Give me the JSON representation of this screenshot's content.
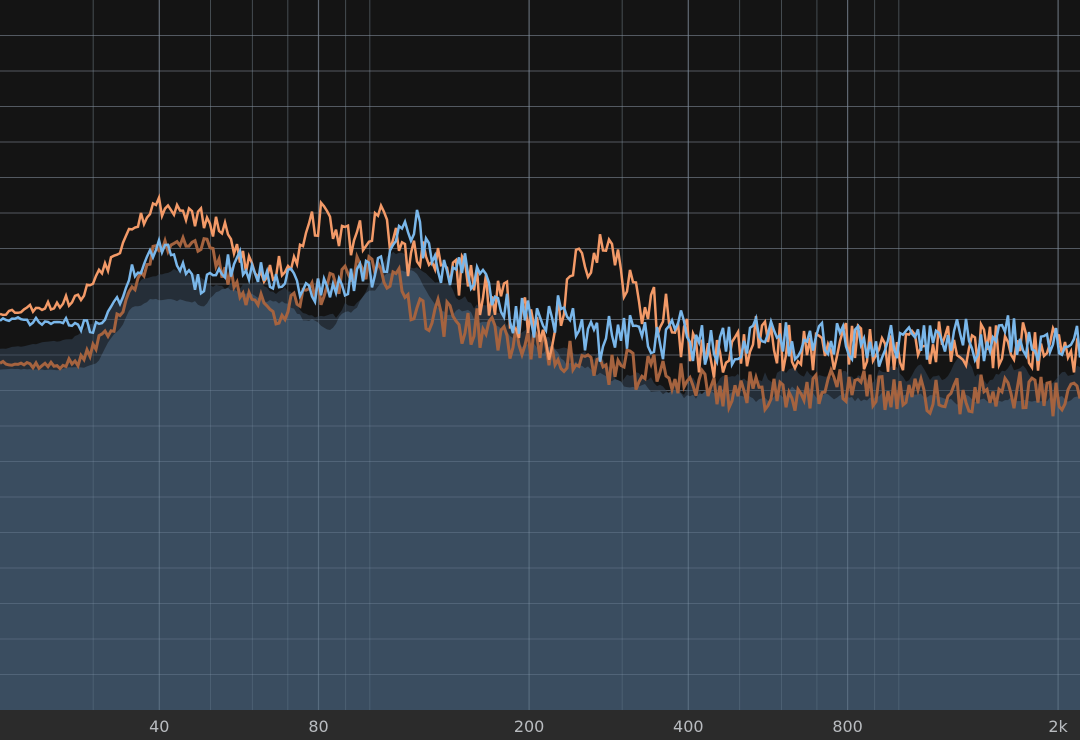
{
  "chart_data": {
    "type": "area",
    "x_scale": "log",
    "x_range": [
      20,
      2200
    ],
    "y_range": [
      -100,
      0
    ],
    "x_ticks": [
      {
        "value": 40,
        "label": "40"
      },
      {
        "value": 80,
        "label": "80"
      },
      {
        "value": 200,
        "label": "200"
      },
      {
        "value": 400,
        "label": "400"
      },
      {
        "value": 800,
        "label": "800"
      },
      {
        "value": 2000,
        "label": "2k"
      }
    ],
    "x_grid_major": [
      40,
      80,
      200,
      400,
      800,
      2000
    ],
    "x_grid_minor": [
      30,
      50,
      60,
      70,
      90,
      100,
      300,
      500,
      600,
      700,
      900,
      1000
    ],
    "y_grid": [
      -5,
      -10,
      -15,
      -20,
      -25,
      -30,
      -35,
      -40,
      -45,
      -50,
      -55,
      -60,
      -65,
      -70,
      -75,
      -80,
      -85,
      -90,
      -95
    ],
    "grid": true,
    "legend": "none",
    "colors": {
      "background": "#141414",
      "grid": "#5c6066",
      "grid_on_fill": "#8ea3b8",
      "fill_main": "#3a4d60",
      "fill_secondary": "#252e38",
      "line_blue": "#7ab7ea",
      "line_orange": "#f39a68",
      "line_brown": "#a5633f",
      "axis_band": "#2b2b2b",
      "tick_text": "#b9bcc0"
    },
    "series": [
      {
        "key": "blue",
        "points": [
          [
            20,
            -45
          ],
          [
            26,
            -45.5
          ],
          [
            30,
            -46
          ],
          [
            33,
            -43
          ],
          [
            36,
            -38
          ],
          [
            40,
            -35
          ],
          [
            44,
            -37
          ],
          [
            48,
            -40
          ],
          [
            52,
            -38
          ],
          [
            56,
            -37
          ],
          [
            62,
            -38.5
          ],
          [
            70,
            -39
          ],
          [
            76,
            -41
          ],
          [
            84,
            -41
          ],
          [
            92,
            -40
          ],
          [
            100,
            -38
          ],
          [
            108,
            -36
          ],
          [
            116,
            -34
          ],
          [
            122,
            -31
          ],
          [
            128,
            -35
          ],
          [
            134,
            -37
          ],
          [
            140,
            -38
          ],
          [
            150,
            -37
          ],
          [
            160,
            -40
          ],
          [
            170,
            -42
          ],
          [
            180,
            -44
          ],
          [
            200,
            -45
          ],
          [
            225,
            -44
          ],
          [
            245,
            -46
          ],
          [
            270,
            -48
          ],
          [
            295,
            -46
          ],
          [
            320,
            -47
          ],
          [
            350,
            -48
          ],
          [
            380,
            -46
          ],
          [
            410,
            -48
          ],
          [
            450,
            -49
          ],
          [
            500,
            -48.5
          ],
          [
            560,
            -47
          ],
          [
            620,
            -48
          ],
          [
            700,
            -47
          ],
          [
            800,
            -47.5
          ],
          [
            900,
            -49
          ],
          [
            1000,
            -48.5
          ],
          [
            1150,
            -48
          ],
          [
            1300,
            -47
          ],
          [
            1480,
            -49
          ],
          [
            1650,
            -47
          ],
          [
            1850,
            -48
          ],
          [
            2000,
            -49
          ],
          [
            2200,
            -48
          ]
        ],
        "jitter": 3.0
      },
      {
        "key": "orange",
        "points": [
          [
            20,
            -44
          ],
          [
            25,
            -43
          ],
          [
            28,
            -42
          ],
          [
            32,
            -37
          ],
          [
            36,
            -31
          ],
          [
            40,
            -29
          ],
          [
            44,
            -29.5
          ],
          [
            48,
            -31
          ],
          [
            53,
            -33
          ],
          [
            57,
            -36
          ],
          [
            62,
            -39
          ],
          [
            70,
            -37
          ],
          [
            78,
            -31
          ],
          [
            84,
            -31
          ],
          [
            90,
            -34
          ],
          [
            96,
            -33
          ],
          [
            104,
            -31.5
          ],
          [
            112,
            -34
          ],
          [
            120,
            -36
          ],
          [
            130,
            -37
          ],
          [
            140,
            -38
          ],
          [
            152,
            -39
          ],
          [
            165,
            -42
          ],
          [
            180,
            -43
          ],
          [
            200,
            -45
          ],
          [
            215,
            -48
          ],
          [
            230,
            -43
          ],
          [
            250,
            -38
          ],
          [
            265,
            -35
          ],
          [
            280,
            -36.5
          ],
          [
            300,
            -39
          ],
          [
            320,
            -42
          ],
          [
            360,
            -44.5
          ],
          [
            400,
            -48
          ],
          [
            440,
            -51
          ],
          [
            480,
            -49
          ],
          [
            540,
            -48
          ],
          [
            600,
            -49
          ],
          [
            700,
            -49
          ],
          [
            800,
            -48.5
          ],
          [
            900,
            -49.5
          ],
          [
            1000,
            -49
          ],
          [
            1150,
            -48.5
          ],
          [
            1300,
            -48
          ],
          [
            1500,
            -49
          ],
          [
            1700,
            -48
          ],
          [
            1900,
            -49
          ],
          [
            2200,
            -50
          ]
        ],
        "jitter": 3.5
      },
      {
        "key": "brown",
        "points": [
          [
            20,
            -51
          ],
          [
            25,
            -51.5
          ],
          [
            28,
            -51
          ],
          [
            32,
            -47
          ],
          [
            36,
            -40
          ],
          [
            40,
            -35
          ],
          [
            44,
            -33.5
          ],
          [
            48,
            -34.5
          ],
          [
            54,
            -39
          ],
          [
            60,
            -42
          ],
          [
            66,
            -44
          ],
          [
            72,
            -43
          ],
          [
            80,
            -41
          ],
          [
            88,
            -40
          ],
          [
            96,
            -38
          ],
          [
            104,
            -37
          ],
          [
            112,
            -40
          ],
          [
            120,
            -42.5
          ],
          [
            130,
            -44
          ],
          [
            140,
            -45
          ],
          [
            155,
            -46
          ],
          [
            170,
            -47
          ],
          [
            190,
            -48
          ],
          [
            210,
            -49
          ],
          [
            230,
            -50
          ],
          [
            250,
            -51
          ],
          [
            270,
            -51.5
          ],
          [
            300,
            -52
          ],
          [
            340,
            -52.5
          ],
          [
            380,
            -53
          ],
          [
            420,
            -54
          ],
          [
            460,
            -55
          ],
          [
            520,
            -55
          ],
          [
            600,
            -55
          ],
          [
            700,
            -55.5
          ],
          [
            800,
            -54
          ],
          [
            900,
            -55
          ],
          [
            1000,
            -55.5
          ],
          [
            1150,
            -56
          ],
          [
            1300,
            -56
          ],
          [
            1450,
            -55.5
          ],
          [
            1600,
            -55
          ],
          [
            1800,
            -55
          ],
          [
            2000,
            -56
          ],
          [
            2200,
            -56
          ]
        ],
        "jitter": 2.8
      },
      {
        "key": "fill_secondary",
        "points": [
          [
            20,
            -49
          ],
          [
            26,
            -48
          ],
          [
            30,
            -46
          ],
          [
            34,
            -42
          ],
          [
            38,
            -39
          ],
          [
            42,
            -38
          ],
          [
            46,
            -38
          ],
          [
            50,
            -40
          ],
          [
            55,
            -40
          ],
          [
            60,
            -40
          ],
          [
            68,
            -41
          ],
          [
            76,
            -44
          ],
          [
            84,
            -45
          ],
          [
            92,
            -43
          ],
          [
            100,
            -39
          ],
          [
            108,
            -37
          ],
          [
            114,
            -35
          ],
          [
            120,
            -37
          ],
          [
            130,
            -39
          ],
          [
            140,
            -41
          ],
          [
            160,
            -43
          ],
          [
            180,
            -45
          ],
          [
            200,
            -47
          ],
          [
            230,
            -48
          ],
          [
            260,
            -50
          ],
          [
            300,
            -53
          ],
          [
            340,
            -54
          ],
          [
            380,
            -55
          ],
          [
            420,
            -55
          ],
          [
            480,
            -53
          ],
          [
            550,
            -54
          ],
          [
            620,
            -52
          ],
          [
            700,
            -54
          ],
          [
            800,
            -53
          ],
          [
            900,
            -54
          ],
          [
            1000,
            -52
          ],
          [
            1150,
            -53
          ],
          [
            1300,
            -51
          ],
          [
            1500,
            -53
          ],
          [
            1700,
            -52
          ],
          [
            1900,
            -54
          ],
          [
            2200,
            -52
          ]
        ],
        "jitter": 2.0
      },
      {
        "key": "fill_main",
        "points": [
          [
            20,
            -52
          ],
          [
            26,
            -52
          ],
          [
            30,
            -51.5
          ],
          [
            33,
            -47
          ],
          [
            36,
            -43
          ],
          [
            40,
            -42
          ],
          [
            44,
            -42
          ],
          [
            48,
            -43
          ],
          [
            52,
            -41
          ],
          [
            56,
            -41
          ],
          [
            62,
            -42
          ],
          [
            70,
            -43
          ],
          [
            76,
            -45
          ],
          [
            84,
            -46
          ],
          [
            92,
            -44
          ],
          [
            100,
            -41
          ],
          [
            110,
            -39
          ],
          [
            118,
            -38
          ],
          [
            126,
            -40
          ],
          [
            134,
            -43
          ],
          [
            142,
            -44
          ],
          [
            152,
            -44
          ],
          [
            164,
            -45
          ],
          [
            176,
            -46
          ],
          [
            190,
            -48
          ],
          [
            210,
            -49
          ],
          [
            235,
            -51
          ],
          [
            260,
            -52
          ],
          [
            290,
            -53
          ],
          [
            320,
            -54
          ],
          [
            360,
            -55
          ],
          [
            400,
            -55.5
          ],
          [
            440,
            -55
          ],
          [
            500,
            -56
          ],
          [
            560,
            -56
          ],
          [
            640,
            -55
          ],
          [
            720,
            -55.5
          ],
          [
            800,
            -56
          ],
          [
            900,
            -56
          ],
          [
            1000,
            -55.5
          ],
          [
            1150,
            -56
          ],
          [
            1300,
            -56.5
          ],
          [
            1450,
            -56
          ],
          [
            1600,
            -56
          ],
          [
            1800,
            -56.5
          ],
          [
            2000,
            -56
          ],
          [
            2200,
            -56.5
          ]
        ],
        "jitter": 1.2
      }
    ]
  }
}
